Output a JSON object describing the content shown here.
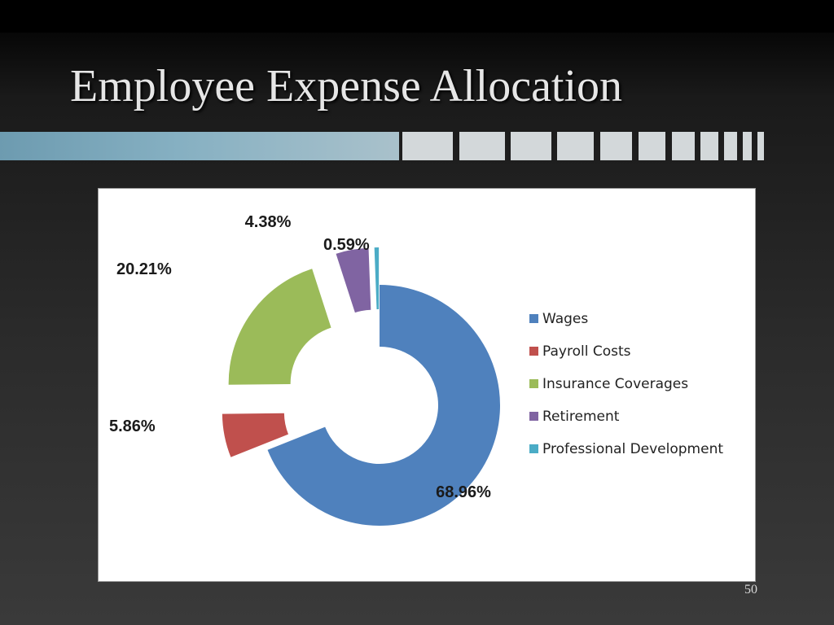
{
  "slide": {
    "title": "Employee Expense Allocation",
    "page_number": "50",
    "background_color": "#2b2b2b",
    "accent_color": "#7fa8ba"
  },
  "chart_data": {
    "type": "pie",
    "style": "exploded-doughnut",
    "legend_placement": "right",
    "categories": [
      "Wages",
      "Payroll Costs",
      "Insurance Coverages",
      "Retirement",
      "Professional Development"
    ],
    "values": [
      68.96,
      5.86,
      20.21,
      4.38,
      0.59
    ],
    "labels": [
      "68.96%",
      "5.86%",
      "20.21%",
      "4.38%",
      "0.59%"
    ],
    "colors": [
      "#4f81bd",
      "#c0504d",
      "#9bbb59",
      "#8064a2",
      "#4bacc6"
    ]
  }
}
